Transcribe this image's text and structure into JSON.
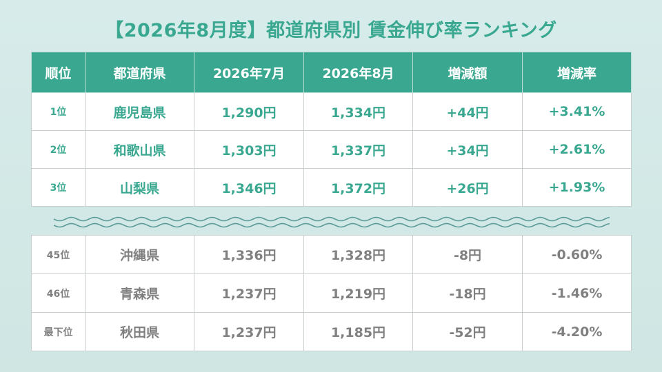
{
  "title": "【2026年8月度】都道府県別 賃金伸び率ランキング",
  "headers": {
    "rank": "順位",
    "prefecture": "都道府県",
    "july": "2026年7月",
    "august": "2026年8月",
    "change": "増減額",
    "rate": "増減率"
  },
  "top_rows": [
    {
      "rank": "1位",
      "prefecture": "鹿児島県",
      "july": "1,290円",
      "august": "1,334円",
      "change": "+44円",
      "rate": "+3.41%"
    },
    {
      "rank": "2位",
      "prefecture": "和歌山県",
      "july": "1,303円",
      "august": "1,337円",
      "change": "+34円",
      "rate": "+2.61%"
    },
    {
      "rank": "3位",
      "prefecture": "山梨県",
      "july": "1,346円",
      "august": "1,372円",
      "change": "+26円",
      "rate": "+1.93%"
    }
  ],
  "bottom_rows": [
    {
      "rank": "45位",
      "prefecture": "沖縄県",
      "july": "1,336円",
      "august": "1,328円",
      "change": "-8円",
      "rate": "-0.60%"
    },
    {
      "rank": "46位",
      "prefecture": "青森県",
      "july": "1,237円",
      "august": "1,219円",
      "change": "-18円",
      "rate": "-1.46%"
    },
    {
      "rank": "最下位",
      "prefecture": "秋田県",
      "july": "1,237円",
      "august": "1,185円",
      "change": "-52円",
      "rate": "-4.20%"
    }
  ],
  "colors": {
    "accent": "#3aa890",
    "negative_text": "#808080",
    "background": "#d7ecea"
  }
}
